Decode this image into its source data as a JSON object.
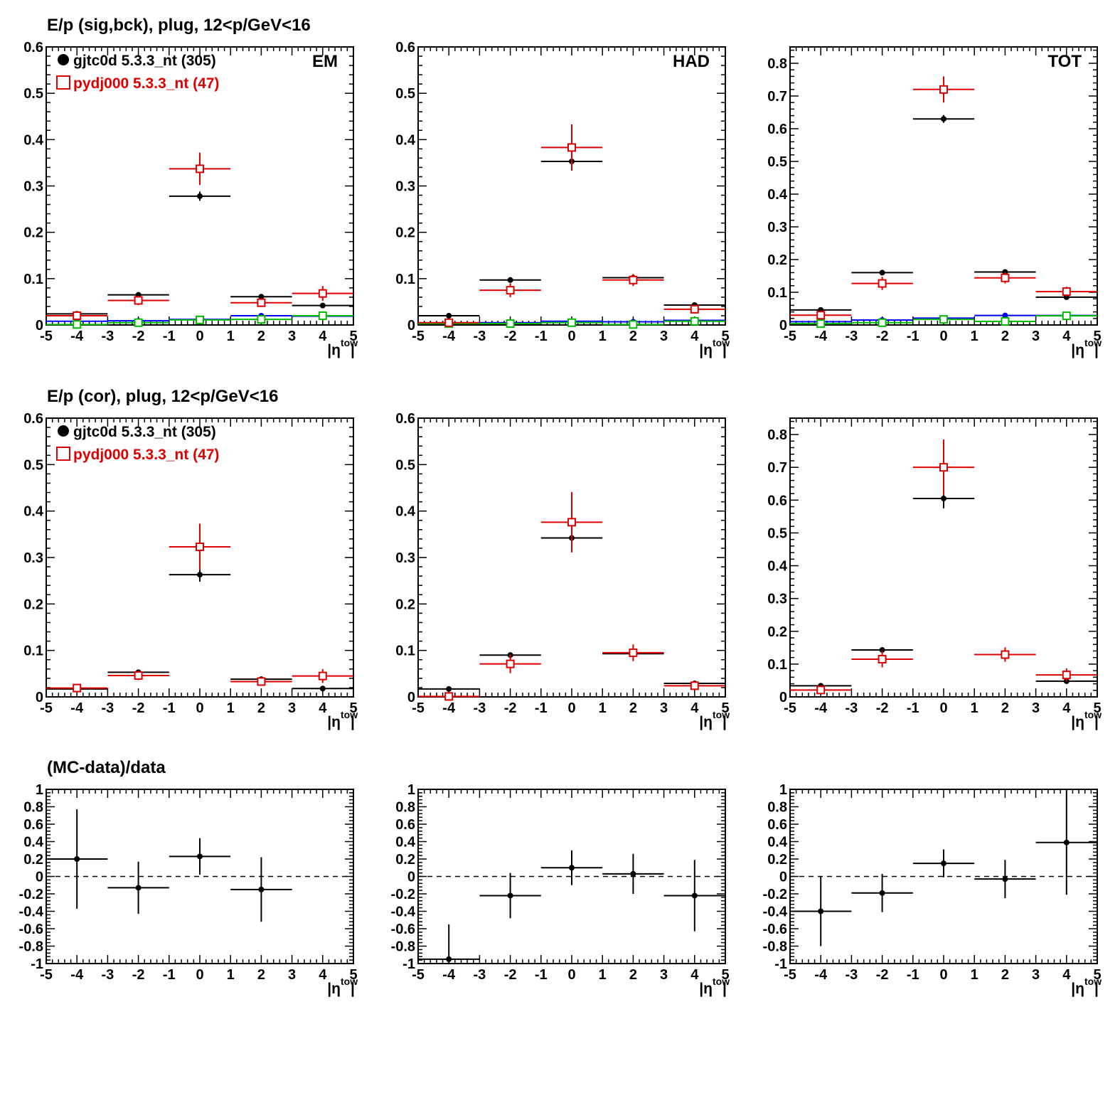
{
  "rows": [
    {
      "title": "E/p (sig,bck), plug, 12<p/GeV<16"
    },
    {
      "title": "E/p (cor), plug, 12<p/GeV<16"
    },
    {
      "title": "(MC-data)/data"
    }
  ],
  "colors": {
    "data": "#000000",
    "mc": "#dd0000",
    "bkg_data": "#0000ff",
    "bkg_mc": "#00bb00"
  },
  "chart_data": [
    {
      "type": "scatter",
      "row": 0,
      "col": 0,
      "label": "EM",
      "xlabel": "|η^tow|",
      "xlim": [
        -5,
        5
      ],
      "ylim": [
        0,
        0.6
      ],
      "xticks": [
        "-5",
        "-4",
        "-3",
        "-2",
        "-1",
        "0",
        "1",
        "2",
        "3",
        "4",
        "5"
      ],
      "yticks": [
        "0",
        "0.1",
        "0.2",
        "0.3",
        "0.4",
        "0.5",
        "0.6"
      ],
      "legend": [
        {
          "label": "gjtc0d 5.3.3_nt (305)",
          "marker": "filled-circle",
          "color": "#000000"
        },
        {
          "label": "pydj000 5.3.3_nt (47)",
          "marker": "open-square",
          "color": "#dd0000"
        }
      ],
      "series": [
        {
          "role": "data",
          "points": [
            [
              -4,
              0.024,
              0.003
            ],
            [
              -2,
              0.065,
              0.005
            ],
            [
              0,
              0.278,
              0.01
            ],
            [
              2,
              0.061,
              0.005
            ],
            [
              4,
              0.042,
              0.004
            ]
          ]
        },
        {
          "role": "mc",
          "points": [
            [
              -4,
              0.02,
              0.006
            ],
            [
              -2,
              0.053,
              0.01
            ],
            [
              0,
              0.337,
              0.035
            ],
            [
              2,
              0.048,
              0.009
            ],
            [
              4,
              0.068,
              0.016
            ]
          ]
        },
        {
          "role": "bkg_data",
          "points": [
            [
              -4,
              0.008,
              0.002
            ],
            [
              -2,
              0.009,
              0.002
            ],
            [
              0,
              0.012,
              0.002
            ],
            [
              2,
              0.02,
              0.002
            ],
            [
              4,
              0.019,
              0.002
            ]
          ]
        },
        {
          "role": "bkg_mc",
          "points": [
            [
              -4,
              0.001,
              0.002
            ],
            [
              -2,
              0.005,
              0.003
            ],
            [
              0,
              0.011,
              0.003
            ],
            [
              2,
              0.012,
              0.003
            ],
            [
              4,
              0.02,
              0.004
            ]
          ]
        }
      ]
    },
    {
      "type": "scatter",
      "row": 0,
      "col": 1,
      "label": "HAD",
      "xlabel": "|η^tow|",
      "xlim": [
        -5,
        5
      ],
      "ylim": [
        0,
        0.6
      ],
      "xticks": [
        "-5",
        "-4",
        "-3",
        "-2",
        "-1",
        "0",
        "1",
        "2",
        "3",
        "4",
        "5"
      ],
      "yticks": [
        "0",
        "0.1",
        "0.2",
        "0.3",
        "0.4",
        "0.5",
        "0.6"
      ],
      "series": [
        {
          "role": "data",
          "points": [
            [
              -4,
              0.02,
              0.003
            ],
            [
              -2,
              0.097,
              0.006
            ],
            [
              0,
              0.353,
              0.015
            ],
            [
              2,
              0.102,
              0.006
            ],
            [
              4,
              0.043,
              0.004
            ]
          ]
        },
        {
          "role": "mc",
          "points": [
            [
              -4,
              0.005,
              0.004
            ],
            [
              -2,
              0.075,
              0.015
            ],
            [
              0,
              0.383,
              0.05
            ],
            [
              2,
              0.097,
              0.013
            ],
            [
              4,
              0.034,
              0.007
            ]
          ]
        },
        {
          "role": "bkg_data",
          "points": [
            [
              -4,
              0.004,
              0.002
            ],
            [
              -2,
              0.005,
              0.002
            ],
            [
              0,
              0.008,
              0.002
            ],
            [
              2,
              0.007,
              0.002
            ],
            [
              4,
              0.01,
              0.002
            ]
          ]
        },
        {
          "role": "bkg_mc",
          "points": [
            [
              -4,
              0.003,
              0.002
            ],
            [
              -2,
              0.003,
              0.002
            ],
            [
              0,
              0.005,
              0.002
            ],
            [
              2,
              0.001,
              0.002
            ],
            [
              4,
              0.008,
              0.003
            ]
          ]
        }
      ]
    },
    {
      "type": "scatter",
      "row": 0,
      "col": 2,
      "label": "TOT",
      "xlabel": "|η^tow|",
      "xlim": [
        -5,
        5
      ],
      "ylim": [
        0,
        0.85
      ],
      "xticks": [
        "-5",
        "-4",
        "-3",
        "-2",
        "-1",
        "0",
        "1",
        "2",
        "3",
        "4",
        "5"
      ],
      "yticks": [
        "0",
        "0.1",
        "0.2",
        "0.3",
        "0.4",
        "0.5",
        "0.6",
        "0.7",
        "0.8"
      ],
      "series": [
        {
          "role": "data",
          "points": [
            [
              -4,
              0.046,
              0.004
            ],
            [
              -2,
              0.16,
              0.006
            ],
            [
              0,
              0.63,
              0.012
            ],
            [
              2,
              0.162,
              0.006
            ],
            [
              4,
              0.085,
              0.005
            ]
          ]
        },
        {
          "role": "mc",
          "points": [
            [
              -4,
              0.03,
              0.009
            ],
            [
              -2,
              0.127,
              0.02
            ],
            [
              0,
              0.72,
              0.04
            ],
            [
              2,
              0.144,
              0.017
            ],
            [
              4,
              0.102,
              0.015
            ]
          ]
        },
        {
          "role": "bkg_data",
          "points": [
            [
              -4,
              0.01,
              0.002
            ],
            [
              -2,
              0.015,
              0.002
            ],
            [
              0,
              0.021,
              0.002
            ],
            [
              2,
              0.029,
              0.002
            ],
            [
              4,
              0.029,
              0.002
            ]
          ]
        },
        {
          "role": "bkg_mc",
          "points": [
            [
              -4,
              0.004,
              0.003
            ],
            [
              -2,
              0.007,
              0.003
            ],
            [
              0,
              0.017,
              0.003
            ],
            [
              2,
              0.011,
              0.003
            ],
            [
              4,
              0.028,
              0.004
            ]
          ]
        }
      ]
    },
    {
      "type": "scatter",
      "row": 1,
      "col": 0,
      "xlabel": "|η^tow|",
      "xlim": [
        -5,
        5
      ],
      "ylim": [
        0,
        0.6
      ],
      "xticks": [
        "-5",
        "-4",
        "-3",
        "-2",
        "-1",
        "0",
        "1",
        "2",
        "3",
        "4",
        "5"
      ],
      "yticks": [
        "0",
        "0.1",
        "0.2",
        "0.3",
        "0.4",
        "0.5",
        "0.6"
      ],
      "legend": [
        {
          "label": "gjtc0d 5.3.3_nt (305)",
          "marker": "filled-circle",
          "color": "#000000"
        },
        {
          "label": "pydj000 5.3.3_nt (47)",
          "marker": "open-square",
          "color": "#dd0000"
        }
      ],
      "series": [
        {
          "role": "data",
          "points": [
            [
              -4,
              0.017,
              0.003
            ],
            [
              -2,
              0.053,
              0.005
            ],
            [
              0,
              0.263,
              0.015
            ],
            [
              2,
              0.038,
              0.004
            ],
            [
              4,
              0.018,
              0.004
            ]
          ]
        },
        {
          "role": "mc",
          "points": [
            [
              -4,
              0.019,
              0.005
            ],
            [
              -2,
              0.046,
              0.01
            ],
            [
              0,
              0.323,
              0.05
            ],
            [
              2,
              0.033,
              0.008
            ],
            [
              4,
              0.045,
              0.015
            ]
          ]
        }
      ]
    },
    {
      "type": "scatter",
      "row": 1,
      "col": 1,
      "xlabel": "|η^tow|",
      "xlim": [
        -5,
        5
      ],
      "ylim": [
        0,
        0.6
      ],
      "xticks": [
        "-5",
        "-4",
        "-3",
        "-2",
        "-1",
        "0",
        "1",
        "2",
        "3",
        "4",
        "5"
      ],
      "yticks": [
        "0",
        "0.1",
        "0.2",
        "0.3",
        "0.4",
        "0.5",
        "0.6"
      ],
      "series": [
        {
          "role": "data",
          "points": [
            [
              -4,
              0.017,
              0.003
            ],
            [
              -2,
              0.09,
              0.006
            ],
            [
              0,
              0.342,
              0.02
            ],
            [
              2,
              0.093,
              0.006
            ],
            [
              4,
              0.029,
              0.004
            ]
          ]
        },
        {
          "role": "mc",
          "points": [
            [
              -4,
              0.001,
              0.003
            ],
            [
              -2,
              0.071,
              0.02
            ],
            [
              0,
              0.376,
              0.065
            ],
            [
              2,
              0.095,
              0.018
            ],
            [
              4,
              0.024,
              0.007
            ]
          ]
        }
      ]
    },
    {
      "type": "scatter",
      "row": 1,
      "col": 2,
      "xlabel": "|η^tow|",
      "xlim": [
        -5,
        5
      ],
      "ylim": [
        0,
        0.85
      ],
      "xticks": [
        "-5",
        "-4",
        "-3",
        "-2",
        "-1",
        "0",
        "1",
        "2",
        "3",
        "4",
        "5"
      ],
      "yticks": [
        "0",
        "0.1",
        "0.2",
        "0.3",
        "0.4",
        "0.5",
        "0.6",
        "0.7",
        "0.8"
      ],
      "series": [
        {
          "role": "data",
          "points": [
            [
              -4,
              0.034,
              0.004
            ],
            [
              -2,
              0.143,
              0.007
            ],
            [
              0,
              0.605,
              0.03
            ],
            [
              2,
              0.129,
              0.007
            ],
            [
              4,
              0.048,
              0.005
            ]
          ]
        },
        {
          "role": "mc",
          "points": [
            [
              -4,
              0.021,
              0.007
            ],
            [
              -2,
              0.115,
              0.025
            ],
            [
              0,
              0.7,
              0.085
            ],
            [
              2,
              0.129,
              0.022
            ],
            [
              4,
              0.067,
              0.02
            ]
          ]
        }
      ]
    },
    {
      "type": "scatter",
      "row": 2,
      "col": 0,
      "xlabel": "|η^tow|",
      "xlim": [
        -5,
        5
      ],
      "ylim": [
        -1,
        1
      ],
      "xticks": [
        "-5",
        "-4",
        "-3",
        "-2",
        "-1",
        "0",
        "1",
        "2",
        "3",
        "4",
        "5"
      ],
      "yticks": [
        "-1",
        "-0.8",
        "-0.6",
        "-0.4",
        "-0.2",
        "0",
        "0.2",
        "0.4",
        "0.6",
        "0.8",
        "1"
      ],
      "reference_line": 0,
      "series": [
        {
          "role": "data",
          "points": [
            [
              -4,
              0.2,
              0.57
            ],
            [
              -2,
              -0.13,
              0.3
            ],
            [
              0,
              0.23,
              0.21
            ],
            [
              2,
              -0.15,
              0.37
            ]
          ]
        }
      ]
    },
    {
      "type": "scatter",
      "row": 2,
      "col": 1,
      "xlabel": "|η^tow|",
      "xlim": [
        -5,
        5
      ],
      "ylim": [
        -1,
        1
      ],
      "xticks": [
        "-5",
        "-4",
        "-3",
        "-2",
        "-1",
        "0",
        "1",
        "2",
        "3",
        "4",
        "5"
      ],
      "yticks": [
        "-1",
        "-0.8",
        "-0.6",
        "-0.4",
        "-0.2",
        "0",
        "0.2",
        "0.4",
        "0.6",
        "0.8",
        "1"
      ],
      "reference_line": 0,
      "series": [
        {
          "role": "data",
          "points": [
            [
              -4,
              -0.95,
              0.4
            ],
            [
              -2,
              -0.22,
              0.26
            ],
            [
              0,
              0.1,
              0.2
            ],
            [
              2,
              0.03,
              0.23
            ],
            [
              4,
              -0.22,
              0.41
            ]
          ]
        }
      ]
    },
    {
      "type": "scatter",
      "row": 2,
      "col": 2,
      "xlabel": "|η^tow|",
      "xlim": [
        -5,
        5
      ],
      "ylim": [
        -1,
        1
      ],
      "xticks": [
        "-5",
        "-4",
        "-3",
        "-2",
        "-1",
        "0",
        "1",
        "2",
        "3",
        "4",
        "5"
      ],
      "yticks": [
        "-1",
        "-0.8",
        "-0.6",
        "-0.4",
        "-0.2",
        "0",
        "0.2",
        "0.4",
        "0.6",
        "0.8",
        "1"
      ],
      "reference_line": 0,
      "series": [
        {
          "role": "data",
          "points": [
            [
              -4,
              -0.4,
              0.4
            ],
            [
              -2,
              -0.19,
              0.22
            ],
            [
              0,
              0.15,
              0.16
            ],
            [
              2,
              -0.03,
              0.22
            ],
            [
              4,
              0.39,
              0.6
            ]
          ]
        }
      ]
    }
  ]
}
